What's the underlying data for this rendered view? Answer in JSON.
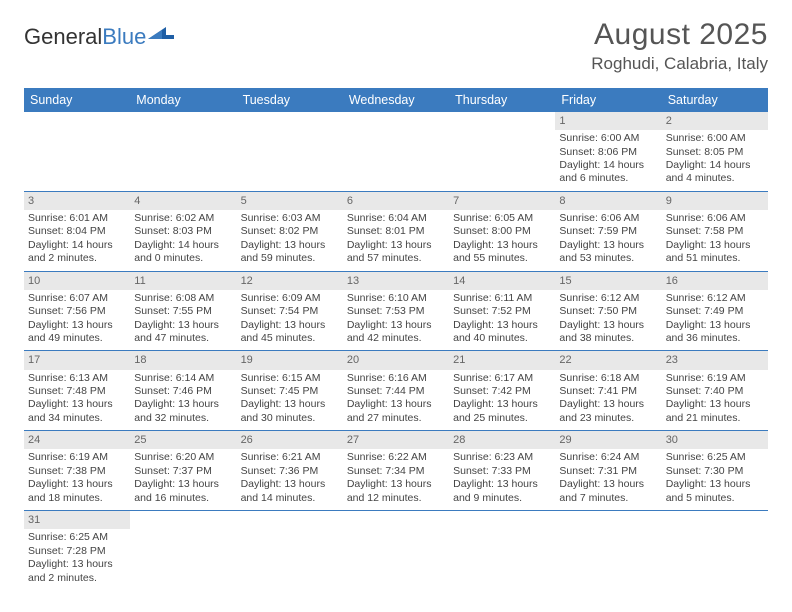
{
  "logo": {
    "text1": "General",
    "text2": "Blue"
  },
  "header": {
    "month_title": "August 2025",
    "location": "Roghudi, Calabria, Italy"
  },
  "colors": {
    "header_bg": "#3b7bbf",
    "header_fg": "#ffffff",
    "daynum_bg": "#e8e8e8",
    "rule": "#3b7bbf"
  },
  "day_headers": [
    "Sunday",
    "Monday",
    "Tuesday",
    "Wednesday",
    "Thursday",
    "Friday",
    "Saturday"
  ],
  "weeks": [
    [
      null,
      null,
      null,
      null,
      null,
      {
        "n": "1",
        "sr": "Sunrise: 6:00 AM",
        "ss": "Sunset: 8:06 PM",
        "dl": "Daylight: 14 hours and 6 minutes."
      },
      {
        "n": "2",
        "sr": "Sunrise: 6:00 AM",
        "ss": "Sunset: 8:05 PM",
        "dl": "Daylight: 14 hours and 4 minutes."
      }
    ],
    [
      {
        "n": "3",
        "sr": "Sunrise: 6:01 AM",
        "ss": "Sunset: 8:04 PM",
        "dl": "Daylight: 14 hours and 2 minutes."
      },
      {
        "n": "4",
        "sr": "Sunrise: 6:02 AM",
        "ss": "Sunset: 8:03 PM",
        "dl": "Daylight: 14 hours and 0 minutes."
      },
      {
        "n": "5",
        "sr": "Sunrise: 6:03 AM",
        "ss": "Sunset: 8:02 PM",
        "dl": "Daylight: 13 hours and 59 minutes."
      },
      {
        "n": "6",
        "sr": "Sunrise: 6:04 AM",
        "ss": "Sunset: 8:01 PM",
        "dl": "Daylight: 13 hours and 57 minutes."
      },
      {
        "n": "7",
        "sr": "Sunrise: 6:05 AM",
        "ss": "Sunset: 8:00 PM",
        "dl": "Daylight: 13 hours and 55 minutes."
      },
      {
        "n": "8",
        "sr": "Sunrise: 6:06 AM",
        "ss": "Sunset: 7:59 PM",
        "dl": "Daylight: 13 hours and 53 minutes."
      },
      {
        "n": "9",
        "sr": "Sunrise: 6:06 AM",
        "ss": "Sunset: 7:58 PM",
        "dl": "Daylight: 13 hours and 51 minutes."
      }
    ],
    [
      {
        "n": "10",
        "sr": "Sunrise: 6:07 AM",
        "ss": "Sunset: 7:56 PM",
        "dl": "Daylight: 13 hours and 49 minutes."
      },
      {
        "n": "11",
        "sr": "Sunrise: 6:08 AM",
        "ss": "Sunset: 7:55 PM",
        "dl": "Daylight: 13 hours and 47 minutes."
      },
      {
        "n": "12",
        "sr": "Sunrise: 6:09 AM",
        "ss": "Sunset: 7:54 PM",
        "dl": "Daylight: 13 hours and 45 minutes."
      },
      {
        "n": "13",
        "sr": "Sunrise: 6:10 AM",
        "ss": "Sunset: 7:53 PM",
        "dl": "Daylight: 13 hours and 42 minutes."
      },
      {
        "n": "14",
        "sr": "Sunrise: 6:11 AM",
        "ss": "Sunset: 7:52 PM",
        "dl": "Daylight: 13 hours and 40 minutes."
      },
      {
        "n": "15",
        "sr": "Sunrise: 6:12 AM",
        "ss": "Sunset: 7:50 PM",
        "dl": "Daylight: 13 hours and 38 minutes."
      },
      {
        "n": "16",
        "sr": "Sunrise: 6:12 AM",
        "ss": "Sunset: 7:49 PM",
        "dl": "Daylight: 13 hours and 36 minutes."
      }
    ],
    [
      {
        "n": "17",
        "sr": "Sunrise: 6:13 AM",
        "ss": "Sunset: 7:48 PM",
        "dl": "Daylight: 13 hours and 34 minutes."
      },
      {
        "n": "18",
        "sr": "Sunrise: 6:14 AM",
        "ss": "Sunset: 7:46 PM",
        "dl": "Daylight: 13 hours and 32 minutes."
      },
      {
        "n": "19",
        "sr": "Sunrise: 6:15 AM",
        "ss": "Sunset: 7:45 PM",
        "dl": "Daylight: 13 hours and 30 minutes."
      },
      {
        "n": "20",
        "sr": "Sunrise: 6:16 AM",
        "ss": "Sunset: 7:44 PM",
        "dl": "Daylight: 13 hours and 27 minutes."
      },
      {
        "n": "21",
        "sr": "Sunrise: 6:17 AM",
        "ss": "Sunset: 7:42 PM",
        "dl": "Daylight: 13 hours and 25 minutes."
      },
      {
        "n": "22",
        "sr": "Sunrise: 6:18 AM",
        "ss": "Sunset: 7:41 PM",
        "dl": "Daylight: 13 hours and 23 minutes."
      },
      {
        "n": "23",
        "sr": "Sunrise: 6:19 AM",
        "ss": "Sunset: 7:40 PM",
        "dl": "Daylight: 13 hours and 21 minutes."
      }
    ],
    [
      {
        "n": "24",
        "sr": "Sunrise: 6:19 AM",
        "ss": "Sunset: 7:38 PM",
        "dl": "Daylight: 13 hours and 18 minutes."
      },
      {
        "n": "25",
        "sr": "Sunrise: 6:20 AM",
        "ss": "Sunset: 7:37 PM",
        "dl": "Daylight: 13 hours and 16 minutes."
      },
      {
        "n": "26",
        "sr": "Sunrise: 6:21 AM",
        "ss": "Sunset: 7:36 PM",
        "dl": "Daylight: 13 hours and 14 minutes."
      },
      {
        "n": "27",
        "sr": "Sunrise: 6:22 AM",
        "ss": "Sunset: 7:34 PM",
        "dl": "Daylight: 13 hours and 12 minutes."
      },
      {
        "n": "28",
        "sr": "Sunrise: 6:23 AM",
        "ss": "Sunset: 7:33 PM",
        "dl": "Daylight: 13 hours and 9 minutes."
      },
      {
        "n": "29",
        "sr": "Sunrise: 6:24 AM",
        "ss": "Sunset: 7:31 PM",
        "dl": "Daylight: 13 hours and 7 minutes."
      },
      {
        "n": "30",
        "sr": "Sunrise: 6:25 AM",
        "ss": "Sunset: 7:30 PM",
        "dl": "Daylight: 13 hours and 5 minutes."
      }
    ],
    [
      {
        "n": "31",
        "sr": "Sunrise: 6:25 AM",
        "ss": "Sunset: 7:28 PM",
        "dl": "Daylight: 13 hours and 2 minutes."
      },
      null,
      null,
      null,
      null,
      null,
      null
    ]
  ]
}
